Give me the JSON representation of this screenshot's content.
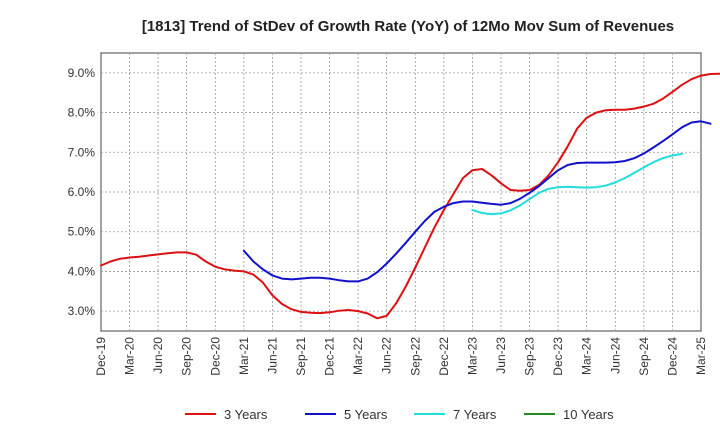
{
  "chart_data": {
    "type": "line",
    "title": "[1813]  Trend of StDev of Growth Rate (YoY) of 12Mo Mov Sum of Revenues",
    "xlabel": "",
    "ylabel": "",
    "ylim": [
      2.5,
      9.5
    ],
    "y_ticks": [
      3.0,
      4.0,
      5.0,
      6.0,
      7.0,
      8.0,
      9.0
    ],
    "y_tick_labels": [
      "3.0%",
      "4.0%",
      "5.0%",
      "6.0%",
      "7.0%",
      "8.0%",
      "9.0%"
    ],
    "x_tick_labels": [
      "Dec-19",
      "Mar-20",
      "Jun-20",
      "Sep-20",
      "Dec-20",
      "Mar-21",
      "Jun-21",
      "Sep-21",
      "Dec-21",
      "Mar-22",
      "Jun-22",
      "Sep-22",
      "Dec-22",
      "Mar-23",
      "Jun-23",
      "Sep-23",
      "Dec-23",
      "Mar-24",
      "Jun-24",
      "Sep-24",
      "Dec-24",
      "Mar-25"
    ],
    "grid": true,
    "legend_position": "bottom",
    "series": [
      {
        "name": "3 Years",
        "color": "#dd1111",
        "start_month_index": 0,
        "values": [
          4.15,
          4.25,
          4.32,
          4.35,
          4.37,
          4.4,
          4.43,
          4.46,
          4.48,
          4.48,
          4.42,
          4.25,
          4.12,
          4.05,
          4.02,
          4.0,
          3.92,
          3.72,
          3.4,
          3.18,
          3.05,
          2.98,
          2.96,
          2.95,
          2.97,
          3.01,
          3.03,
          3.0,
          2.94,
          2.82,
          2.88,
          3.2,
          3.62,
          4.1,
          4.6,
          5.1,
          5.55,
          5.95,
          6.35,
          6.55,
          6.58,
          6.42,
          6.22,
          6.05,
          6.03,
          6.05,
          6.18,
          6.42,
          6.75,
          7.15,
          7.6,
          7.87,
          8.0,
          8.06,
          8.07,
          8.07,
          8.1,
          8.15,
          8.22,
          8.35,
          8.52,
          8.7,
          8.84,
          8.93,
          8.97,
          8.98,
          8.98
        ]
      },
      {
        "name": "5 Years",
        "color": "#1111cc",
        "start_month_index": 15,
        "values": [
          4.52,
          4.25,
          4.05,
          3.9,
          3.82,
          3.8,
          3.82,
          3.84,
          3.84,
          3.82,
          3.78,
          3.75,
          3.75,
          3.82,
          3.98,
          4.2,
          4.45,
          4.72,
          5.0,
          5.27,
          5.5,
          5.63,
          5.72,
          5.76,
          5.76,
          5.73,
          5.7,
          5.68,
          5.72,
          5.83,
          5.98,
          6.15,
          6.35,
          6.55,
          6.68,
          6.73,
          6.74,
          6.74,
          6.74,
          6.75,
          6.78,
          6.85,
          6.97,
          7.12,
          7.28,
          7.45,
          7.63,
          7.75,
          7.78,
          7.72
        ]
      },
      {
        "name": "7 Years",
        "color": "#22dddd",
        "start_month_index": 39,
        "values": [
          5.55,
          5.47,
          5.44,
          5.46,
          5.54,
          5.66,
          5.82,
          5.98,
          6.08,
          6.12,
          6.13,
          6.12,
          6.11,
          6.12,
          6.16,
          6.24,
          6.35,
          6.48,
          6.62,
          6.75,
          6.85,
          6.92,
          6.96
        ]
      },
      {
        "name": "10 Years",
        "color": "#228822",
        "start_month_index": 0,
        "values": []
      }
    ]
  }
}
